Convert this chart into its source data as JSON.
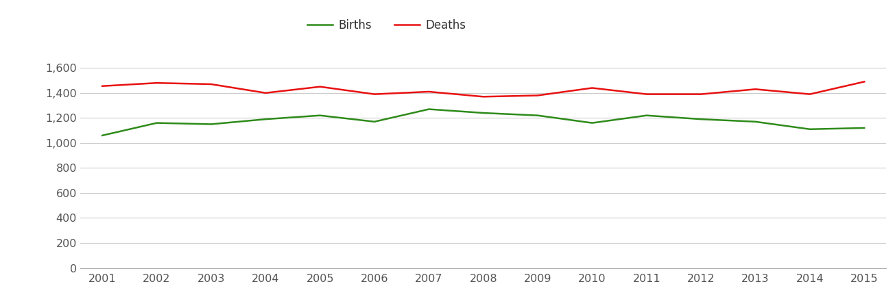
{
  "years": [
    2001,
    2002,
    2003,
    2004,
    2005,
    2006,
    2007,
    2008,
    2009,
    2010,
    2011,
    2012,
    2013,
    2014,
    2015
  ],
  "births": [
    1060,
    1160,
    1150,
    1190,
    1220,
    1170,
    1270,
    1240,
    1220,
    1160,
    1220,
    1190,
    1170,
    1110,
    1120
  ],
  "deaths": [
    1455,
    1480,
    1470,
    1400,
    1450,
    1390,
    1410,
    1370,
    1380,
    1440,
    1390,
    1390,
    1430,
    1390,
    1490
  ],
  "births_color": "#2e8b1a",
  "deaths_color": "#e81010",
  "births_label": "Births",
  "deaths_label": "Deaths",
  "ylim": [
    0,
    1700
  ],
  "yticks": [
    0,
    200,
    400,
    600,
    800,
    1000,
    1200,
    1400,
    1600
  ],
  "background_color": "#ffffff",
  "grid_color": "#cccccc",
  "line_width": 1.8,
  "legend_fontsize": 12,
  "tick_fontsize": 11.5,
  "tick_color": "#555555"
}
